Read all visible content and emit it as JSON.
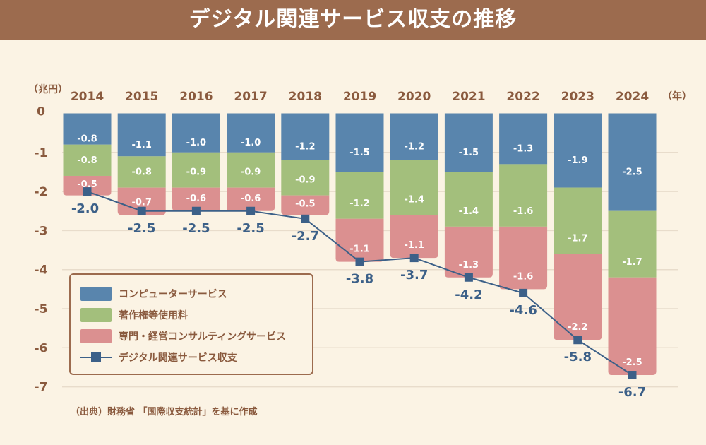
{
  "title": "デジタル関連サービス収支の推移",
  "source": "（出典）財務省 「国際収支統計」を基に作成",
  "chart_data": {
    "type": "bar",
    "stacked": true,
    "title": "デジタル関連サービス収支の推移",
    "ylabel": "（兆円）",
    "xlabel": "（年）",
    "ylim": [
      -7,
      0
    ],
    "yticks": [
      "0",
      "-1",
      "-2",
      "-3",
      "-4",
      "-5",
      "-6",
      "-7"
    ],
    "grid": true,
    "legend_position": "bottom-left",
    "categories": [
      "2014",
      "2015",
      "2016",
      "2017",
      "2018",
      "2019",
      "2020",
      "2021",
      "2022",
      "2023",
      "2024"
    ],
    "series": [
      {
        "name": "コンピューターサービス",
        "color": "#5985ad",
        "values": [
          -0.8,
          -1.1,
          -1.0,
          -1.0,
          -1.2,
          -1.5,
          -1.2,
          -1.5,
          -1.3,
          -1.9,
          -2.5
        ],
        "labels": [
          "-0.8",
          "-1.1",
          "-1.0",
          "-1.0",
          "-1.2",
          "-1.5",
          "-1.2",
          "-1.5",
          "-1.3",
          "-1.9",
          "-2.5"
        ]
      },
      {
        "name": "著作権等使用料",
        "color": "#a3bf7c",
        "values": [
          -0.8,
          -0.8,
          -0.9,
          -0.9,
          -0.9,
          -1.2,
          -1.4,
          -1.4,
          -1.6,
          -1.7,
          -1.7
        ],
        "labels": [
          "-0.8",
          "-0.8",
          "-0.9",
          "-0.9",
          "-0.9",
          "-1.2",
          "-1.4",
          "-1.4",
          "-1.6",
          "-1.7",
          "-1.7"
        ]
      },
      {
        "name": "専門・経営コンサルティングサービス",
        "color": "#db9090",
        "values": [
          -0.5,
          -0.7,
          -0.6,
          -0.6,
          -0.5,
          -1.1,
          -1.1,
          -1.3,
          -1.6,
          -2.2,
          -2.5
        ],
        "labels": [
          "-0.5",
          "-0.7",
          "-0.6",
          "-0.6",
          "-0.5",
          "-1.1",
          "-1.1",
          "-1.3",
          "-1.6",
          "-2.2",
          "-2.5"
        ]
      }
    ],
    "line": {
      "name": "デジタル関連サービス収支",
      "type": "line",
      "color": "#3c6088",
      "values": [
        -2.0,
        -2.5,
        -2.5,
        -2.5,
        -2.7,
        -3.8,
        -3.7,
        -4.2,
        -4.6,
        -5.8,
        -6.7
      ],
      "labels": [
        "-2.0",
        "-2.5",
        "-2.5",
        "-2.5",
        "-2.7",
        "-3.8",
        "-3.7",
        "-4.2",
        "-4.6",
        "-5.8",
        "-6.7"
      ]
    }
  }
}
